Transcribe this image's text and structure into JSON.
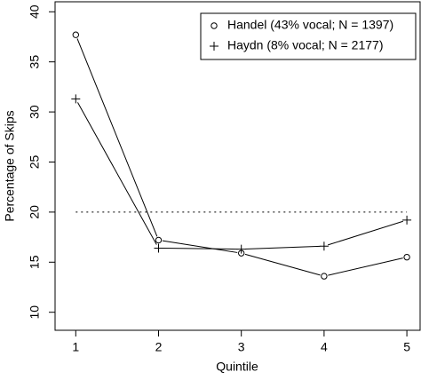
{
  "chart_data": {
    "type": "line",
    "x_label": "Quintile",
    "y_label": "Percentage of Skips",
    "x": [
      1,
      2,
      3,
      4,
      5
    ],
    "series": [
      {
        "name": "Handel (43% vocal; N = 1397)",
        "color": "#000000",
        "marker": "circle",
        "values": [
          37.7,
          17.2,
          15.9,
          13.6,
          15.5
        ]
      },
      {
        "name": "Haydn (8% vocal; N = 2177)",
        "color": "#000000",
        "marker": "plus",
        "values": [
          31.3,
          16.4,
          16.3,
          16.6,
          19.2
        ]
      }
    ],
    "hline": 20,
    "xlim": [
      0.75,
      5.16
    ],
    "xticks": [
      1,
      2,
      3,
      4,
      5
    ],
    "ylim": [
      8.2,
      41
    ],
    "yticks": [
      10,
      15,
      20,
      25,
      30,
      35,
      40
    ],
    "legend": "top-right"
  }
}
